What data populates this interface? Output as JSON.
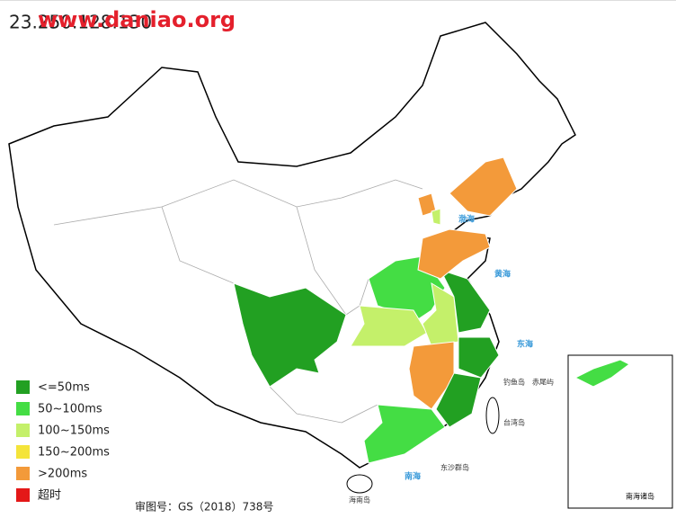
{
  "header": {
    "title": "23.250.128.130",
    "watermark": "www.daniao.org"
  },
  "legend": [
    {
      "label": "<=50ms",
      "color": "#22a022"
    },
    {
      "label": "50~100ms",
      "color": "#44dd44"
    },
    {
      "label": "100~150ms",
      "color": "#c4f06a"
    },
    {
      "label": "150~200ms",
      "color": "#f4e43a"
    },
    {
      "label": ">200ms",
      "color": "#f39a3a"
    },
    {
      "label": "超时",
      "color": "#e41818"
    }
  ],
  "map_labels": {
    "bohai": "渤海",
    "huanghai": "黄海",
    "donghai": "东海",
    "nanhai": "南海",
    "taiwan": "台湾岛",
    "hainan": "海南岛",
    "dongsha": "东沙群岛",
    "diaoyu": "钓鱼岛",
    "chiwei": "赤尾屿",
    "inset": "南海诸岛"
  },
  "footer": "审图号：GS（2018）738号"
}
